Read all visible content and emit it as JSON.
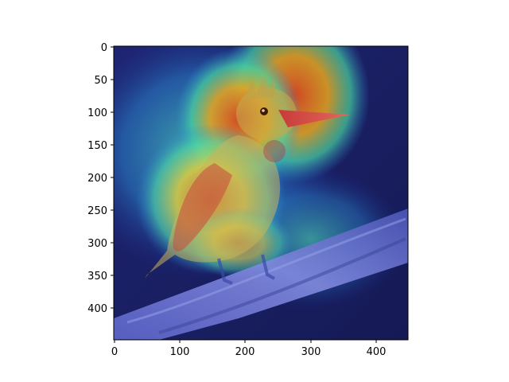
{
  "figure": {
    "image_description_icon": "kingfisher-bird-heatmap-overlay",
    "colormap": "jet",
    "overlay_colors": {
      "low": "#2a1a8c",
      "mid": "#36c8a8",
      "high": "#d23a1a"
    }
  },
  "axes": {
    "x_range": [
      0,
      450
    ],
    "y_range": [
      0,
      450
    ],
    "x_ticks": [
      {
        "value": 0,
        "label": "0"
      },
      {
        "value": 100,
        "label": "100"
      },
      {
        "value": 200,
        "label": "200"
      },
      {
        "value": 300,
        "label": "300"
      },
      {
        "value": 400,
        "label": "400"
      }
    ],
    "y_ticks": [
      {
        "value": 0,
        "label": "0"
      },
      {
        "value": 50,
        "label": "50"
      },
      {
        "value": 100,
        "label": "100"
      },
      {
        "value": 150,
        "label": "150"
      },
      {
        "value": 200,
        "label": "200"
      },
      {
        "value": 250,
        "label": "250"
      },
      {
        "value": 300,
        "label": "300"
      },
      {
        "value": 350,
        "label": "350"
      },
      {
        "value": 400,
        "label": "400"
      }
    ]
  }
}
